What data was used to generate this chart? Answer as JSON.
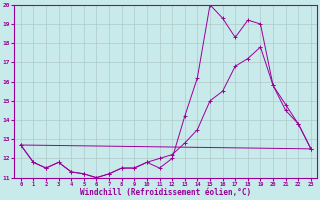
{
  "xlabel": "Windchill (Refroidissement éolien,°C)",
  "background_color": "#c8eaea",
  "grid_color": "#b0c8c8",
  "line_color": "#990099",
  "xlim": [
    -0.5,
    23.5
  ],
  "ylim": [
    11,
    20
  ],
  "xticks": [
    0,
    1,
    2,
    3,
    4,
    5,
    6,
    7,
    8,
    9,
    10,
    11,
    12,
    13,
    14,
    15,
    16,
    17,
    18,
    19,
    20,
    21,
    22,
    23
  ],
  "yticks": [
    11,
    12,
    13,
    14,
    15,
    16,
    17,
    18,
    19,
    20
  ],
  "series_jagged": {
    "x": [
      0,
      1,
      2,
      3,
      4,
      5,
      6,
      7,
      8,
      9,
      10,
      11,
      12,
      13,
      14,
      15,
      16,
      17,
      18,
      19,
      20,
      21,
      22,
      23
    ],
    "y": [
      12.7,
      11.8,
      11.5,
      11.8,
      11.3,
      11.2,
      11.0,
      11.2,
      11.5,
      11.5,
      11.8,
      11.5,
      12.0,
      14.2,
      16.2,
      20.0,
      19.3,
      18.3,
      19.2,
      19.0,
      15.8,
      14.5,
      13.8,
      12.5
    ]
  },
  "series_smooth": {
    "x": [
      0,
      1,
      2,
      3,
      4,
      5,
      6,
      7,
      8,
      9,
      10,
      11,
      12,
      13,
      14,
      15,
      16,
      17,
      18,
      19,
      20,
      21,
      22,
      23
    ],
    "y": [
      12.7,
      11.8,
      11.5,
      11.8,
      11.3,
      11.2,
      11.0,
      11.2,
      11.5,
      11.5,
      11.8,
      12.0,
      12.2,
      12.8,
      13.5,
      15.0,
      15.5,
      16.8,
      17.2,
      17.8,
      15.8,
      14.8,
      13.8,
      12.5
    ]
  },
  "series_flat": {
    "x": [
      0,
      23
    ],
    "y": [
      12.7,
      12.5
    ]
  }
}
